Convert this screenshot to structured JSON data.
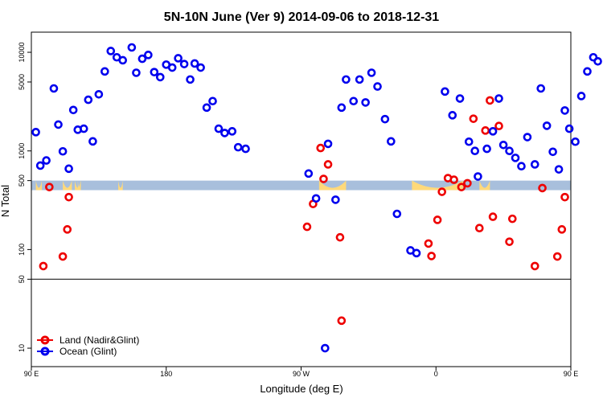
{
  "chart_data": {
    "type": "scatter",
    "title": "5N-10N June (Ver 9)   2014-09-06 to 2018-12-31",
    "xlabel": "Longitude (deg E)",
    "ylabel": "N Total",
    "xlim": [
      90,
      450
    ],
    "y_scale": "log",
    "ylim": [
      6.5,
      16000
    ],
    "x_ticks": [
      {
        "value": 90,
        "label": "90 E"
      },
      {
        "value": 180,
        "label": "180"
      },
      {
        "value": 270,
        "label": "90 W"
      },
      {
        "value": 360,
        "label": "0"
      },
      {
        "value": 450,
        "label": "90 E"
      }
    ],
    "y_ticks": [
      {
        "value": 10,
        "label": "10"
      },
      {
        "value": 50,
        "label": "50"
      },
      {
        "value": 100,
        "label": "100"
      },
      {
        "value": 500,
        "label": "500"
      },
      {
        "value": 1000,
        "label": "1000"
      },
      {
        "value": 5000,
        "label": "5000"
      },
      {
        "value": 10000,
        "label": "10000"
      }
    ],
    "divider_y": 50,
    "band": {
      "y_range": [
        400,
        500
      ],
      "ocean_color": "#a8bfdc",
      "land_color": "#ffd97a"
    },
    "land_segments": [
      [
        111,
        117
      ],
      [
        121,
        123
      ],
      [
        148,
        151
      ],
      [
        282,
        300
      ],
      [
        344,
        378
      ],
      [
        389,
        396
      ],
      [
        453,
        457
      ],
      [
        479,
        483
      ]
    ],
    "series": [
      {
        "name": "Land (Nadir&Glint)",
        "color": "#ee0000",
        "points": [
          [
            98,
            68
          ],
          [
            102,
            430
          ],
          [
            111,
            85
          ],
          [
            114,
            160
          ],
          [
            115,
            340
          ],
          [
            274,
            170
          ],
          [
            278,
            290
          ],
          [
            283,
            1070
          ],
          [
            296,
            133
          ],
          [
            297,
            19
          ],
          [
            285,
            520
          ],
          [
            288,
            730
          ],
          [
            355,
            115
          ],
          [
            357,
            86
          ],
          [
            361,
            200
          ],
          [
            364,
            385
          ],
          [
            368,
            530
          ],
          [
            372,
            510
          ],
          [
            377,
            430
          ],
          [
            381,
            470
          ],
          [
            385,
            2120
          ],
          [
            389,
            165
          ],
          [
            393,
            1610
          ],
          [
            396,
            3250
          ],
          [
            398,
            215
          ],
          [
            402,
            1790
          ],
          [
            409,
            120
          ],
          [
            411,
            205
          ],
          [
            426,
            68
          ],
          [
            431,
            420
          ],
          [
            441,
            85
          ],
          [
            444,
            160
          ],
          [
            446,
            340
          ]
        ]
      },
      {
        "name": "Ocean (Glint)",
        "color": "#0000ee",
        "points": [
          [
            93,
            1550
          ],
          [
            96,
            710
          ],
          [
            100,
            800
          ],
          [
            105,
            4300
          ],
          [
            108,
            1850
          ],
          [
            111,
            990
          ],
          [
            115,
            660
          ],
          [
            118,
            2600
          ],
          [
            121,
            1640
          ],
          [
            125,
            1680
          ],
          [
            128,
            3300
          ],
          [
            131,
            1250
          ],
          [
            135,
            3750
          ],
          [
            139,
            6400
          ],
          [
            143,
            10300
          ],
          [
            147,
            8900
          ],
          [
            151,
            8300
          ],
          [
            157,
            11200
          ],
          [
            160,
            6200
          ],
          [
            164,
            8600
          ],
          [
            168,
            9400
          ],
          [
            172,
            6300
          ],
          [
            176,
            5600
          ],
          [
            180,
            7500
          ],
          [
            184,
            7000
          ],
          [
            188,
            8700
          ],
          [
            192,
            7600
          ],
          [
            196,
            5300
          ],
          [
            199,
            7700
          ],
          [
            203,
            7000
          ],
          [
            207,
            2750
          ],
          [
            211,
            3200
          ],
          [
            215,
            1680
          ],
          [
            219,
            1520
          ],
          [
            224,
            1580
          ],
          [
            228,
            1090
          ],
          [
            233,
            1050
          ],
          [
            275,
            590
          ],
          [
            280,
            330
          ],
          [
            286,
            10
          ],
          [
            288,
            1180
          ],
          [
            293,
            320
          ],
          [
            297,
            2750
          ],
          [
            300,
            5300
          ],
          [
            305,
            3200
          ],
          [
            309,
            5300
          ],
          [
            313,
            3100
          ],
          [
            317,
            6200
          ],
          [
            321,
            4500
          ],
          [
            326,
            2100
          ],
          [
            330,
            1250
          ],
          [
            334,
            230
          ],
          [
            343,
            98
          ],
          [
            347,
            92
          ],
          [
            366,
            4000
          ],
          [
            371,
            2300
          ],
          [
            376,
            3400
          ],
          [
            382,
            1240
          ],
          [
            386,
            1000
          ],
          [
            388,
            550
          ],
          [
            394,
            1050
          ],
          [
            398,
            1580
          ],
          [
            402,
            3400
          ],
          [
            405,
            1150
          ],
          [
            409,
            1000
          ],
          [
            413,
            850
          ],
          [
            417,
            700
          ],
          [
            421,
            1380
          ],
          [
            426,
            730
          ],
          [
            430,
            4300
          ],
          [
            434,
            1800
          ],
          [
            438,
            980
          ],
          [
            442,
            650
          ],
          [
            446,
            2570
          ],
          [
            449,
            1680
          ],
          [
            453,
            1240
          ],
          [
            457,
            3600
          ],
          [
            461,
            6400
          ],
          [
            465,
            8900
          ],
          [
            468,
            8100
          ]
        ]
      }
    ],
    "legend": {
      "position": "bottom-left"
    }
  }
}
